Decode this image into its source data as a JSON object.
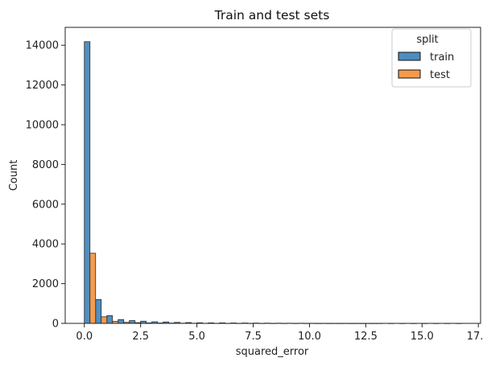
{
  "chart_data": {
    "type": "bar",
    "title": "Train and test sets",
    "xlabel": "squared_error",
    "ylabel": "Count",
    "xlim": [
      -0.85,
      17.6
    ],
    "ylim": [
      0,
      14900
    ],
    "xticks": [
      {
        "value": 0.0,
        "label": "0.0"
      },
      {
        "value": 2.5,
        "label": "2.5"
      },
      {
        "value": 5.0,
        "label": "5.0"
      },
      {
        "value": 7.5,
        "label": "7.5"
      },
      {
        "value": 10.0,
        "label": "10.0"
      },
      {
        "value": 12.5,
        "label": "12.5"
      },
      {
        "value": 15.0,
        "label": "15.0"
      },
      {
        "value": 17.5,
        "label": "17.5"
      }
    ],
    "yticks": [
      {
        "value": 0,
        "label": "0"
      },
      {
        "value": 2000,
        "label": "2000"
      },
      {
        "value": 4000,
        "label": "4000"
      },
      {
        "value": 6000,
        "label": "6000"
      },
      {
        "value": 8000,
        "label": "8000"
      },
      {
        "value": 10000,
        "label": "10000"
      },
      {
        "value": 12000,
        "label": "12000"
      },
      {
        "value": 14000,
        "label": "14000"
      }
    ],
    "grid": false,
    "legend": {
      "title": "split",
      "placement": "top-right"
    },
    "bin_start": 0,
    "bin_width": 0.5,
    "bin_count": 34,
    "series": [
      {
        "name": "train",
        "color": "#4c8dbf",
        "values": [
          14180,
          1200,
          390,
          190,
          140,
          110,
          80,
          70,
          50,
          40,
          30,
          25,
          25,
          20,
          18,
          15,
          12,
          10,
          8,
          8,
          5,
          4,
          3,
          3,
          2,
          2,
          2,
          1,
          1,
          1,
          1,
          1,
          1,
          1
        ]
      },
      {
        "name": "test",
        "color": "#f59a4a",
        "values": [
          3530,
          330,
          100,
          50,
          35,
          25,
          20,
          15,
          10,
          8,
          6,
          5,
          4,
          4,
          3,
          3,
          2,
          2,
          2,
          2,
          1,
          1,
          1,
          1,
          1,
          1,
          0,
          0,
          0,
          0,
          0,
          0,
          0,
          0
        ]
      }
    ]
  }
}
